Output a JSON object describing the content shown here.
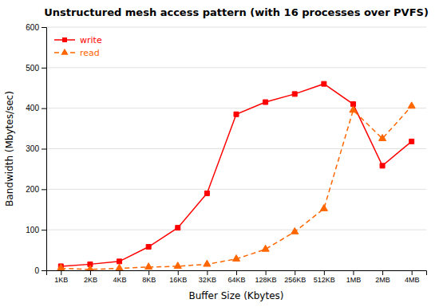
{
  "chart_data": {
    "type": "line",
    "title": "Unstructured mesh access pattern (with 16 processes over PVFS)",
    "xlabel": "Buffer Size (Kbytes)",
    "ylabel": "Bandwidth (Mbytes/sec)",
    "categories": [
      "1KB",
      "2KB",
      "4KB",
      "8KB",
      "16KB",
      "32KB",
      "64KB",
      "128KB",
      "256KB",
      "512KB",
      "1MB",
      "2MB",
      "4MB"
    ],
    "series": [
      {
        "name": "write",
        "color": "#ff0000",
        "marker": "square",
        "line_style": "solid",
        "values": [
          10,
          15,
          22,
          58,
          105,
          190,
          385,
          415,
          435,
          460,
          410,
          258,
          318
        ]
      },
      {
        "name": "read",
        "color": "#ff6600",
        "marker": "triangle",
        "line_style": "dashed",
        "values": [
          5,
          2,
          5,
          8,
          10,
          15,
          28,
          52,
          95,
          152,
          395,
          325,
          405
        ]
      }
    ],
    "ylim": [
      0,
      600
    ],
    "yticks": [
      0,
      100,
      200,
      300,
      400,
      500,
      600
    ],
    "grid": true,
    "legend": "top-left"
  }
}
